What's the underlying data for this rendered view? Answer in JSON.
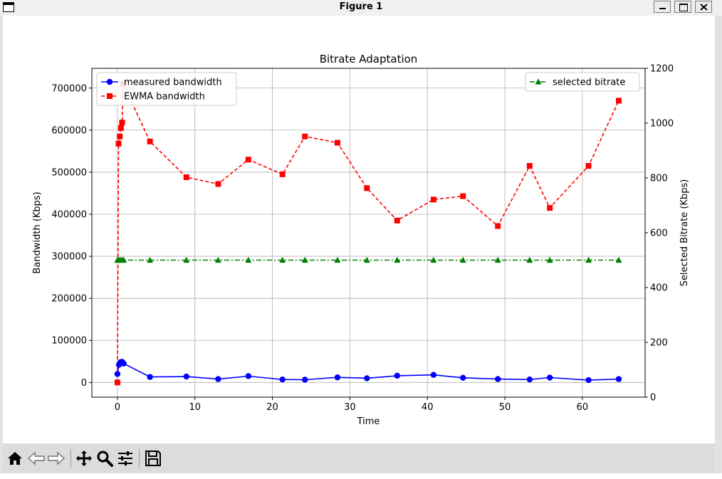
{
  "window": {
    "title": "Figure 1"
  },
  "toolbar": {
    "buttons": [
      {
        "name": "home-icon"
      },
      {
        "name": "back-arrow-icon"
      },
      {
        "name": "forward-arrow-icon"
      },
      {
        "name": "pan-icon"
      },
      {
        "name": "zoom-icon"
      },
      {
        "name": "configure-subplots-icon"
      },
      {
        "name": "save-icon"
      }
    ]
  },
  "chart_data": {
    "type": "line",
    "title": "Bitrate Adaptation",
    "xlabel": "Time",
    "ylabel": "Bandwidth (Kbps)",
    "ylabel_right": "Selected Bitrate (Kbps)",
    "xlim": [
      -3.3,
      68.1
    ],
    "ylim": [
      -35000,
      747000
    ],
    "ylim_right": [
      0,
      1200
    ],
    "xticks": [
      0,
      10,
      20,
      30,
      40,
      50,
      60
    ],
    "yticks": [
      0,
      100000,
      200000,
      300000,
      400000,
      500000,
      600000,
      700000
    ],
    "yticks_right": [
      0,
      200,
      400,
      600,
      800,
      1000,
      1200
    ],
    "grid": true,
    "legend_left": "top-left",
    "legend_right": "top-right",
    "series": [
      {
        "name": "measured bandwidth",
        "axis": "left",
        "color": "#0000ff",
        "linestyle": "solid",
        "marker": "circle",
        "x": [
          0.0,
          0.2,
          0.4,
          0.6,
          0.8,
          4.2,
          8.9,
          13.0,
          16.9,
          21.3,
          24.2,
          28.4,
          32.2,
          36.1,
          40.8,
          44.6,
          49.1,
          53.2,
          55.8,
          60.8,
          64.7
        ],
        "y": [
          20000,
          42000,
          48000,
          49000,
          45000,
          13000,
          14000,
          8000,
          15000,
          7000,
          6500,
          12000,
          10000,
          16000,
          18000,
          11000,
          8000,
          7000,
          11500,
          5500,
          8000
        ]
      },
      {
        "name": "EWMA bandwidth",
        "axis": "left",
        "color": "#ff0000",
        "linestyle": "dashed",
        "marker": "square",
        "x": [
          0.0,
          0.15,
          0.3,
          0.45,
          0.6,
          0.75,
          4.2,
          8.9,
          13.0,
          16.9,
          21.3,
          24.2,
          28.4,
          32.2,
          36.1,
          40.8,
          44.6,
          49.1,
          53.2,
          55.8,
          60.8,
          64.7
        ],
        "y": [
          0,
          568000,
          585000,
          605000,
          618000,
          710000,
          573000,
          488000,
          472000,
          530000,
          495000,
          585000,
          570000,
          462000,
          385000,
          435000,
          443000,
          372000,
          515000,
          415000,
          515000,
          670000
        ]
      },
      {
        "name": "selected bitrate",
        "axis": "right",
        "color": "#008000",
        "linestyle": "dashdot",
        "marker": "triangle",
        "x": [
          0.0,
          0.2,
          0.4,
          0.6,
          0.8,
          4.2,
          8.9,
          13.0,
          16.9,
          21.3,
          24.2,
          28.4,
          32.2,
          36.1,
          40.8,
          44.6,
          49.1,
          53.2,
          55.8,
          60.8,
          64.7
        ],
        "y": [
          500,
          500,
          500,
          500,
          500,
          500,
          500,
          500,
          500,
          500,
          500,
          500,
          500,
          500,
          500,
          500,
          500,
          500,
          500,
          500,
          500
        ]
      }
    ]
  }
}
